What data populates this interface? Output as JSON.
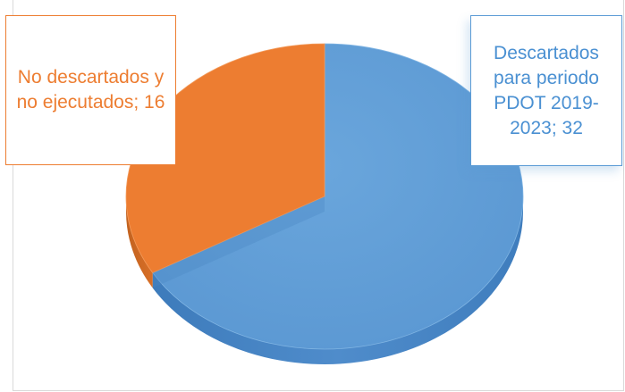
{
  "chart_data": {
    "type": "pie",
    "style": "3d",
    "slices": [
      {
        "label": "Descartados para periodo PDOT 2019-2023",
        "value": 32,
        "color": "#5b9bd5"
      },
      {
        "label": "No descartados y no ejecutados",
        "value": 16,
        "color": "#ed7d31"
      }
    ],
    "data_labels": [
      {
        "text": "Descartados para periodo PDOT 2019-2023; 32",
        "color": "#4a90d2"
      },
      {
        "text": "No descartados y no ejecutados; 16",
        "color": "#ed7d31"
      }
    ]
  }
}
